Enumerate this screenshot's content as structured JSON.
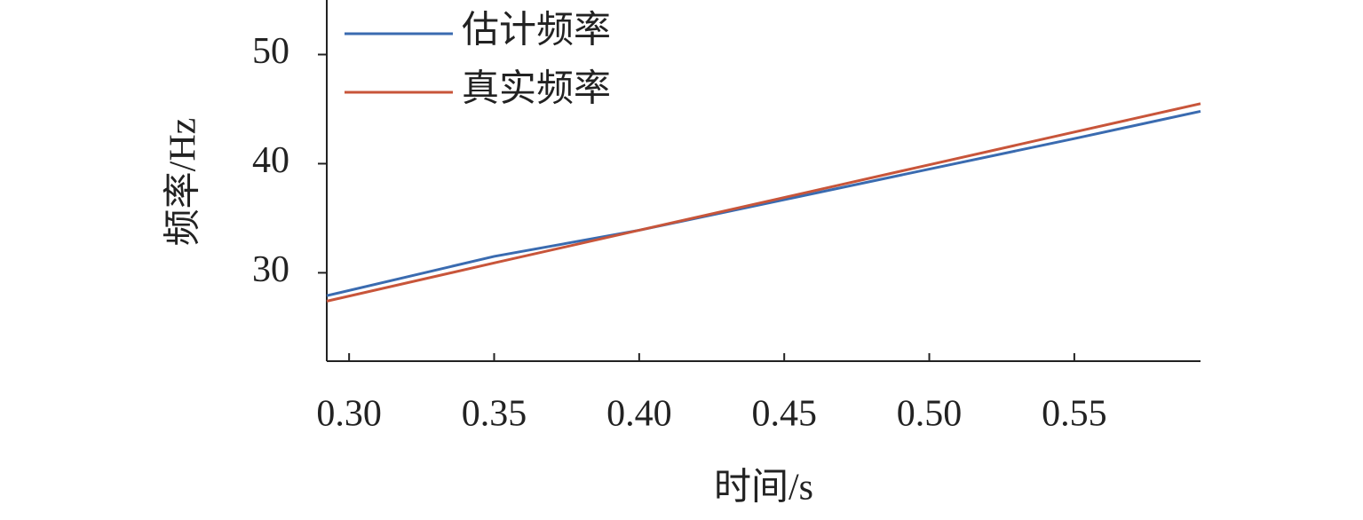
{
  "chart_data": {
    "type": "line",
    "xlabel": "时间/s",
    "ylabel": "频率/Hz",
    "x": [
      0.2923,
      0.35,
      0.4,
      0.45,
      0.5,
      0.55,
      0.5935
    ],
    "series": [
      {
        "name": "估计频率",
        "color": "#3a6bb0",
        "values": [
          27.9,
          31.5,
          33.9,
          36.7,
          39.5,
          42.3,
          44.8
        ]
      },
      {
        "name": "真实频率",
        "color": "#c8553a",
        "values": [
          27.4,
          30.9,
          33.9,
          36.9,
          39.9,
          42.9,
          45.5
        ]
      }
    ],
    "xlim": [
      0.2923,
      0.5935
    ],
    "xticks": [
      {
        "value": 0.3,
        "label": "0.30"
      },
      {
        "value": 0.35,
        "label": "0.35"
      },
      {
        "value": 0.4,
        "label": "0.40"
      },
      {
        "value": 0.45,
        "label": "0.45"
      },
      {
        "value": 0.5,
        "label": "0.50"
      },
      {
        "value": 0.55,
        "label": "0.55"
      }
    ],
    "ylim": [
      21.9,
      55
    ],
    "yticks": [
      30,
      40,
      50
    ],
    "legend": "upper left"
  }
}
